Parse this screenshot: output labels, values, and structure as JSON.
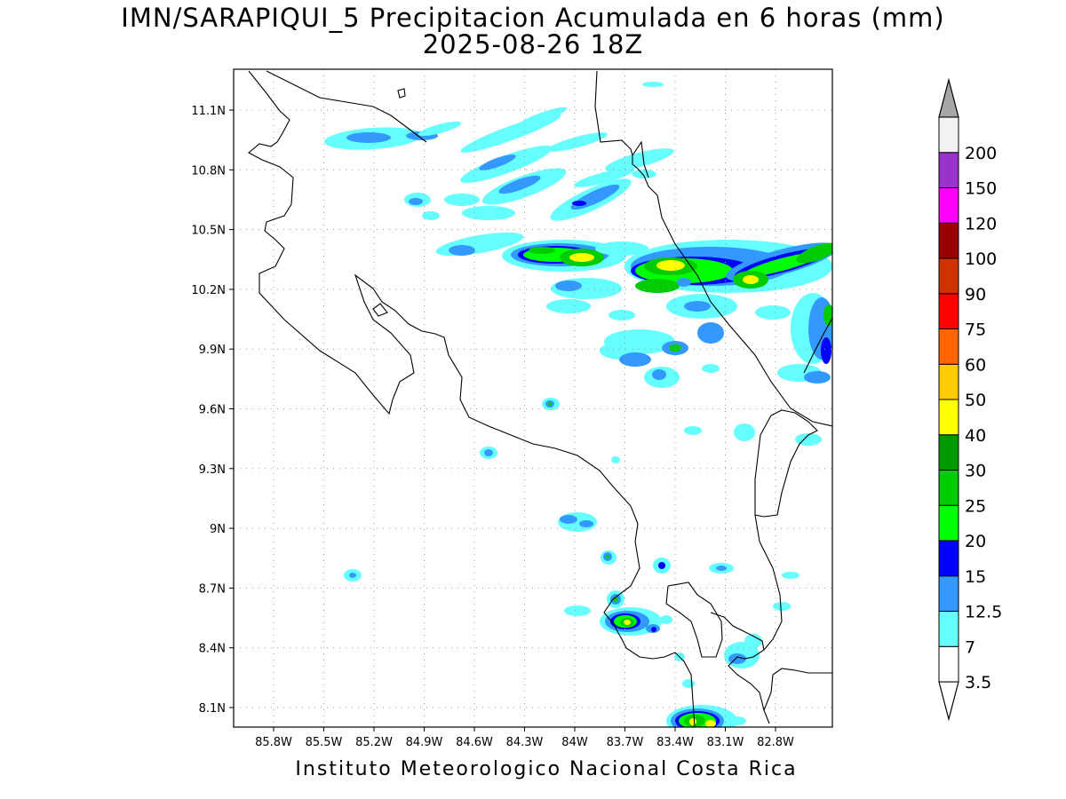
{
  "title": {
    "line1": "IMN/SARAPIQUI_5 Precipitacion Acumulada en 6 horas (mm)",
    "line2": "2025-08-26 18Z"
  },
  "credit": "Instituto Meteorologico Nacional Costa Rica",
  "axes": {
    "lon_labels": [
      "85.8W",
      "85.5W",
      "85.2W",
      "84.9W",
      "84.6W",
      "84.3W",
      "84W",
      "83.7W",
      "83.4W",
      "83.1W",
      "82.8W"
    ],
    "lat_labels": [
      "11.1N",
      "10.8N",
      "10.5N",
      "10.2N",
      "9.9N",
      "9.6N",
      "9.3N",
      "9N",
      "8.7N",
      "8.4N",
      "8.1N"
    ]
  },
  "colorbar": {
    "labels": [
      "3.5",
      "7",
      "12.5",
      "15",
      "20",
      "25",
      "30",
      "40",
      "50",
      "60",
      "75",
      "90",
      "100",
      "120",
      "150",
      "200"
    ],
    "colors": [
      "#ffffff",
      "#66ffff",
      "#3399ff",
      "#0000ff",
      "#00ff00",
      "#00cc00",
      "#009900",
      "#ffff00",
      "#ffcc00",
      "#ff6600",
      "#ff0000",
      "#cc3300",
      "#990000",
      "#ff00ff",
      "#9933cc",
      "#f2f2f2"
    ]
  },
  "legend_colors": {
    "lt_cyan": "#66ffff",
    "lt_blue": "#3399ff",
    "blue": "#0000ff",
    "lime": "#00ff00",
    "green": "#00cc00",
    "dk_green": "#009900",
    "yellow": "#ffff00"
  }
}
